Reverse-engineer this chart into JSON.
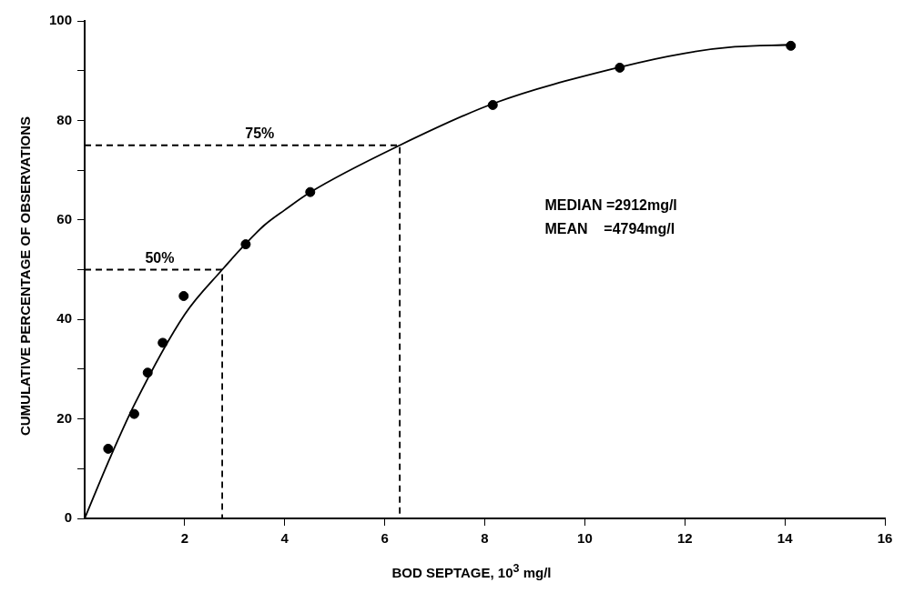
{
  "chart_data": {
    "type": "scatter",
    "xlabel": "BOD SEPTAGE, 10$^{3}$ mg/l",
    "ylabel": "CUMULATIVE PERCENTAGE OF OBSERVATIONS",
    "xlim": [
      0,
      16
    ],
    "xticks": [
      2,
      4,
      6,
      8,
      10,
      12,
      14,
      16
    ],
    "ylim": [
      0,
      100
    ],
    "yticks": [
      0,
      {
        "value": 10,
        "label": null
      },
      20,
      {
        "value": 30,
        "label": null
      },
      40,
      {
        "value": 50,
        "label": null
      },
      60,
      {
        "value": 70,
        "label": null
      },
      80,
      {
        "value": 90,
        "label": null
      },
      100
    ],
    "grid": false,
    "legend": false,
    "series": [
      {
        "type": "scatter",
        "color": "#000000",
        "marker": "circle",
        "x": [
          0.47,
          0.99,
          1.26,
          1.56,
          1.98,
          3.22,
          4.51,
          8.16,
          10.7,
          14.12
        ],
        "values": [
          14,
          21,
          29.3,
          35.3,
          44.7,
          55.1,
          65.6,
          83.1,
          90.6,
          95
        ]
      },
      {
        "type": "line",
        "color": "#000000",
        "marker": "none",
        "line_style": "solid",
        "x": [
          0,
          0.5,
          1,
          2,
          2.75,
          3.2,
          3.6,
          4,
          4.5,
          6.3,
          8.2,
          10.7,
          12,
          13,
          14.1
        ],
        "values": [
          0,
          12,
          23,
          41,
          50,
          55,
          59,
          62,
          65.5,
          75,
          83.5,
          90.7,
          93.5,
          94.8,
          95.2
        ]
      },
      {
        "type": "line",
        "color": "#000000",
        "marker": "none",
        "line_style": "dashed",
        "x": [
          0,
          2.75,
          2.75
        ],
        "values": [
          50,
          50,
          0
        ]
      },
      {
        "type": "line",
        "color": "#000000",
        "marker": "none",
        "line_style": "dashed",
        "x": [
          0,
          6.3,
          6.3
        ],
        "values": [
          75,
          75,
          0
        ]
      }
    ],
    "annotations": [
      {
        "text": "50%",
        "x": 1.5,
        "y": 50
      },
      {
        "text": "75%",
        "x": 3.5,
        "y": 75
      },
      "MEDIAN =2912mg/l",
      "MEAN    =4794mg/l"
    ]
  }
}
